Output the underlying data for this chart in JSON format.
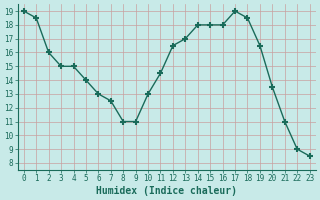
{
  "x": [
    0,
    1,
    2,
    3,
    4,
    5,
    6,
    7,
    8,
    9,
    10,
    11,
    12,
    13,
    14,
    15,
    16,
    17,
    18,
    19,
    20,
    21,
    22,
    23
  ],
  "y": [
    19,
    18.5,
    16,
    15,
    15,
    14,
    13,
    12.5,
    11,
    11,
    13,
    14.5,
    16.5,
    17,
    18,
    18,
    18,
    19,
    18.5,
    16.5,
    13.5,
    11,
    9,
    8.5
  ],
  "line_color": "#1a6b5a",
  "marker": "+",
  "marker_size": 5,
  "marker_lw": 1.5,
  "bg_color": "#c8eae8",
  "grid_color_major": "#c8a0a0",
  "grid_color_minor": "#c8a0a0",
  "xlabel": "Humidex (Indice chaleur)",
  "xlabel_fontsize": 7,
  "xlim": [
    -0.5,
    23.5
  ],
  "ylim": [
    7.5,
    19.5
  ],
  "yticks": [
    8,
    9,
    10,
    11,
    12,
    13,
    14,
    15,
    16,
    17,
    18,
    19
  ],
  "xticks": [
    0,
    1,
    2,
    3,
    4,
    5,
    6,
    7,
    8,
    9,
    10,
    11,
    12,
    13,
    14,
    15,
    16,
    17,
    18,
    19,
    20,
    21,
    22,
    23
  ],
  "tick_fontsize": 5.5,
  "line_width": 1.0
}
